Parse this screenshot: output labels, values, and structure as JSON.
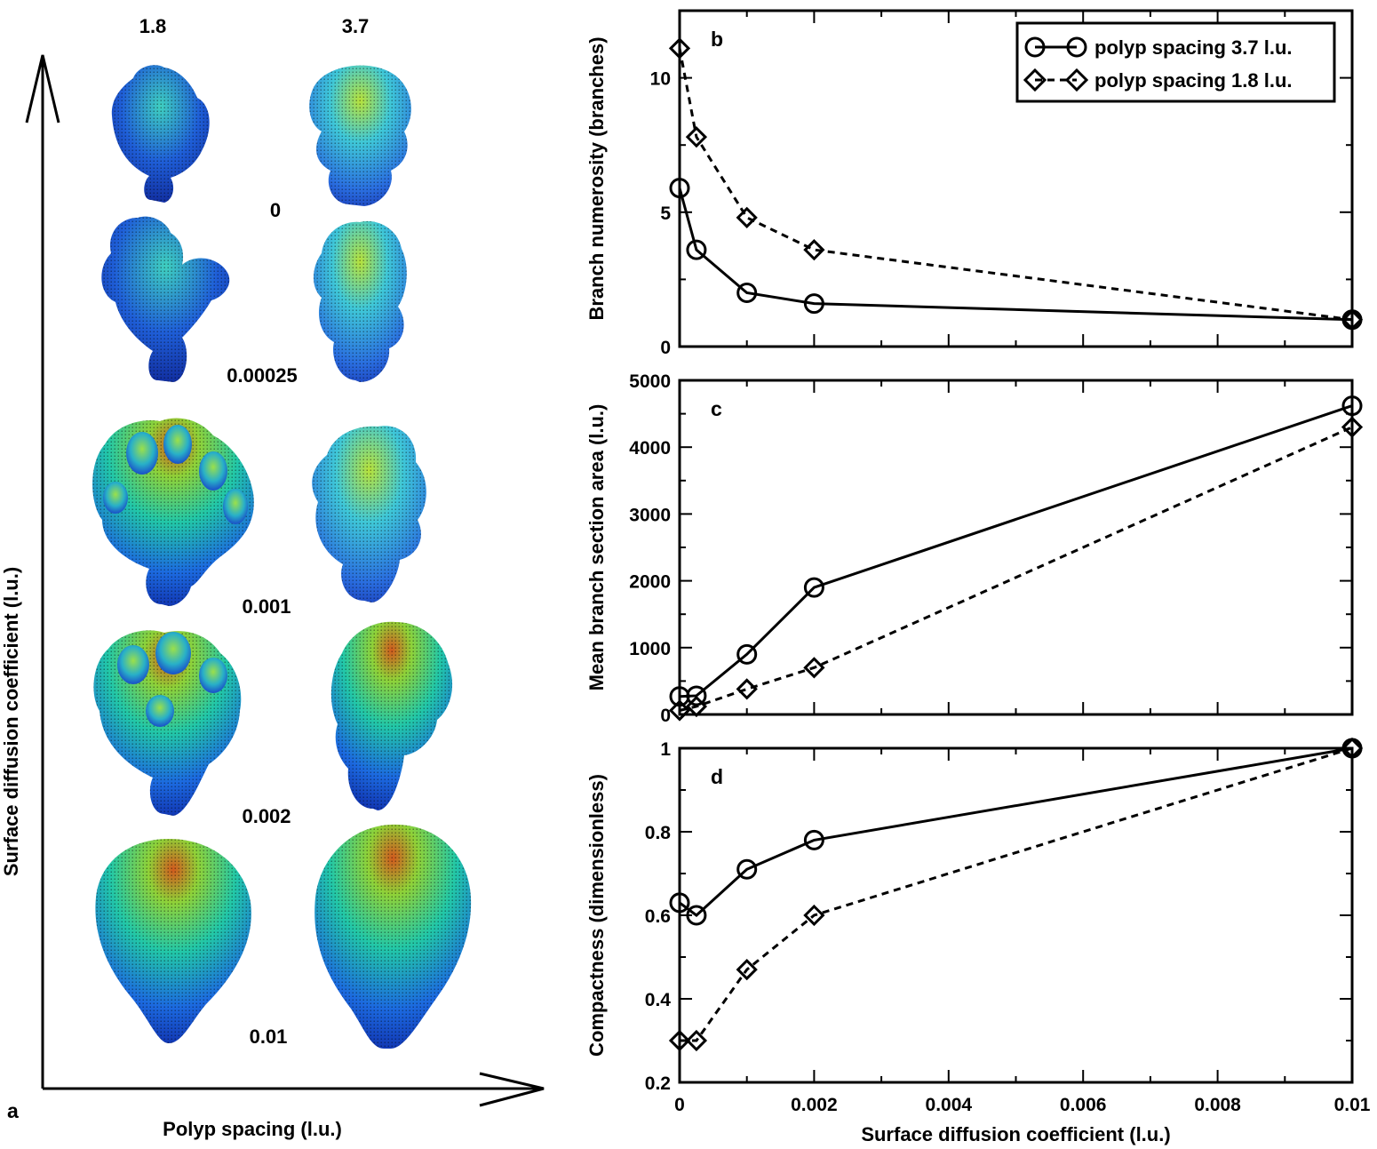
{
  "panel_a": {
    "panel_label": "a",
    "xlabel": "Polyp spacing (l.u.)",
    "ylabel": "Surface diffusion coefficient (l.u.)",
    "columns": [
      "1.8",
      "3.7"
    ],
    "rows": [
      "0",
      "0.00025",
      "0.001",
      "0.002",
      "0.01"
    ]
  },
  "legend": {
    "entries": [
      "polyp spacing 3.7 l.u.",
      "polyp spacing 1.8 l.u."
    ]
  },
  "chart_data": [
    {
      "id": "b",
      "type": "line",
      "panel_label": "b",
      "title": "",
      "xlabel": "",
      "ylabel": "Branch numerosity (branches)",
      "xlim": [
        0,
        0.01
      ],
      "ylim": [
        0,
        12.5
      ],
      "yticks": [
        0,
        5,
        10
      ],
      "x": [
        0,
        0.00025,
        0.001,
        0.002,
        0.01
      ],
      "series": [
        {
          "name": "polyp spacing 3.7 l.u.",
          "marker": "circle",
          "dash": "solid",
          "values": [
            5.9,
            3.6,
            2.0,
            1.6,
            1.0
          ]
        },
        {
          "name": "polyp spacing 1.8 l.u.",
          "marker": "diamond",
          "dash": "dashed",
          "values": [
            11.1,
            7.8,
            4.8,
            3.6,
            1.0
          ]
        }
      ]
    },
    {
      "id": "c",
      "type": "line",
      "panel_label": "c",
      "title": "",
      "xlabel": "",
      "ylabel": "Mean branch section area (l.u.)",
      "xlim": [
        0,
        0.01
      ],
      "ylim": [
        0,
        5000
      ],
      "yticks": [
        0,
        1000,
        2000,
        3000,
        4000,
        5000
      ],
      "x": [
        0,
        0.00025,
        0.001,
        0.002,
        0.01
      ],
      "series": [
        {
          "name": "polyp spacing 3.7 l.u.",
          "marker": "circle",
          "dash": "solid",
          "values": [
            270,
            280,
            900,
            1900,
            4620
          ]
        },
        {
          "name": "polyp spacing 1.8 l.u.",
          "marker": "diamond",
          "dash": "dashed",
          "values": [
            60,
            120,
            380,
            700,
            4300
          ]
        }
      ]
    },
    {
      "id": "d",
      "type": "line",
      "panel_label": "d",
      "title": "",
      "xlabel": "Surface diffusion coefficient (l.u.)",
      "ylabel": "Compactness (dimensionless)",
      "xlim": [
        0,
        0.01
      ],
      "ylim": [
        0.2,
        1.0
      ],
      "yticks": [
        0.2,
        0.4,
        0.6,
        0.8,
        1
      ],
      "xticks": [
        0,
        0.002,
        0.004,
        0.006,
        0.008,
        0.01
      ],
      "x": [
        0,
        0.00025,
        0.001,
        0.002,
        0.01
      ],
      "series": [
        {
          "name": "polyp spacing 3.7 l.u.",
          "marker": "circle",
          "dash": "solid",
          "values": [
            0.63,
            0.6,
            0.71,
            0.78,
            1.0
          ]
        },
        {
          "name": "polyp spacing 1.8 l.u.",
          "marker": "diamond",
          "dash": "dashed",
          "values": [
            0.3,
            0.3,
            0.47,
            0.6,
            1.0
          ]
        }
      ]
    }
  ]
}
